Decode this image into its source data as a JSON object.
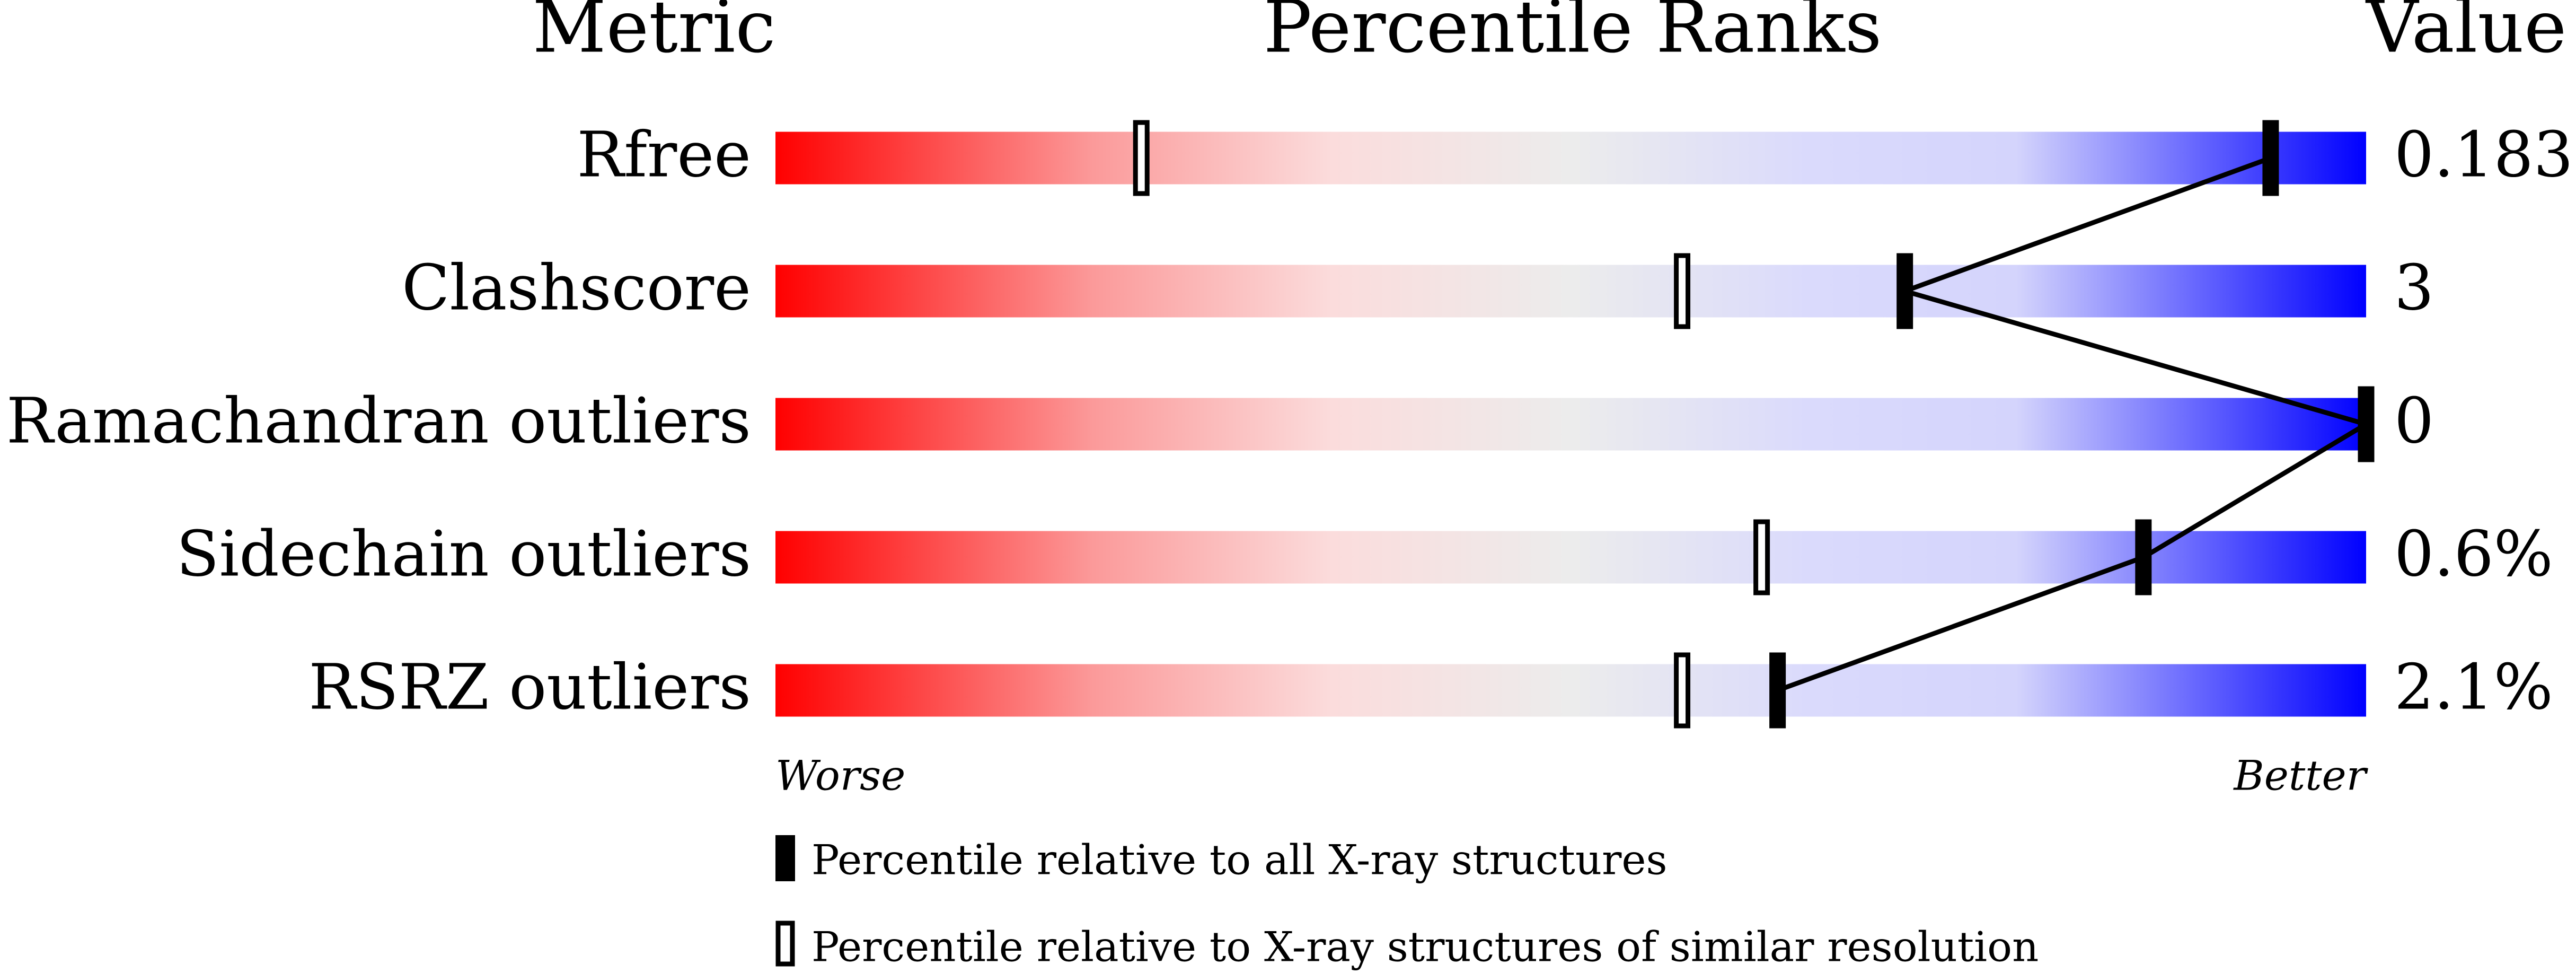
{
  "chart_data": {
    "type": "percentile",
    "headers": {
      "metric": "Metric",
      "ranks": "Percentile Ranks",
      "value": "Value"
    },
    "xlim": [
      0,
      100
    ],
    "metrics": [
      {
        "name": "Rfree",
        "value": "0.183",
        "percentile_all": 94,
        "percentile_similar": 23
      },
      {
        "name": "Clashscore",
        "value": "3",
        "percentile_all": 71,
        "percentile_similar": 57
      },
      {
        "name": "Ramachandran outliers",
        "value": "0",
        "percentile_all": 100,
        "percentile_similar": 100
      },
      {
        "name": "Sidechain outliers",
        "value": "0.6%",
        "percentile_all": 86,
        "percentile_similar": 62
      },
      {
        "name": "RSRZ outliers",
        "value": "2.1%",
        "percentile_all": 63,
        "percentile_similar": 57
      }
    ],
    "worse_label": "Worse",
    "better_label": "Better",
    "legend": {
      "all": "Percentile relative to all X-ray structures",
      "similar": "Percentile relative to X-ray structures of similar resolution"
    }
  }
}
